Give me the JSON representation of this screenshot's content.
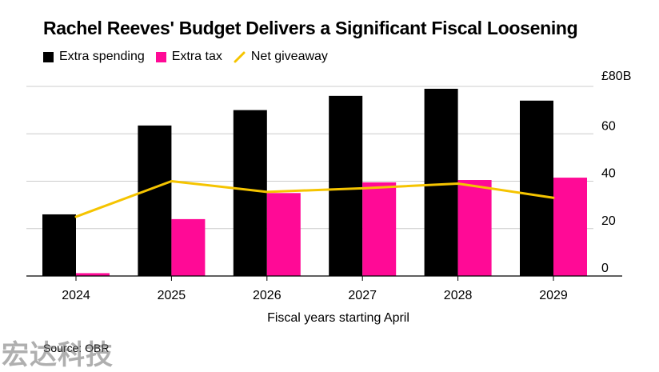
{
  "colors": {
    "extra_spending": "#000000",
    "extra_tax": "#ff0a96",
    "net_giveaway": "#f5c400",
    "grid": "#cccccc",
    "axis": "#000000"
  },
  "watermark": "宏达科技",
  "source": "Source: OBR",
  "chart_data": {
    "type": "bar",
    "title": "Rachel Reeves' Budget Delivers a Significant Fiscal Loosening",
    "xlabel": "Fiscal years starting April",
    "ylabel": "",
    "y_unit_label": "£80B",
    "ylim": [
      0,
      80
    ],
    "yticks": [
      0,
      20,
      40,
      60,
      80
    ],
    "ytick_labels": [
      "0",
      "20",
      "40",
      "60",
      "£80B"
    ],
    "y_axis_side": "right",
    "grid": true,
    "legend_position": "top-left",
    "categories": [
      "2024",
      "2025",
      "2026",
      "2027",
      "2028",
      "2029"
    ],
    "series": [
      {
        "name": "Extra spending",
        "type": "bar",
        "color": "#000000",
        "values": [
          26,
          63.5,
          70,
          76,
          79,
          74
        ]
      },
      {
        "name": "Extra tax",
        "type": "bar",
        "color": "#ff0a96",
        "values": [
          1.2,
          24,
          35,
          39.5,
          40.5,
          41.5
        ]
      },
      {
        "name": "Net giveaway",
        "type": "line",
        "color": "#f5c400",
        "values": [
          25,
          40,
          35.5,
          37,
          39,
          33
        ]
      }
    ]
  }
}
